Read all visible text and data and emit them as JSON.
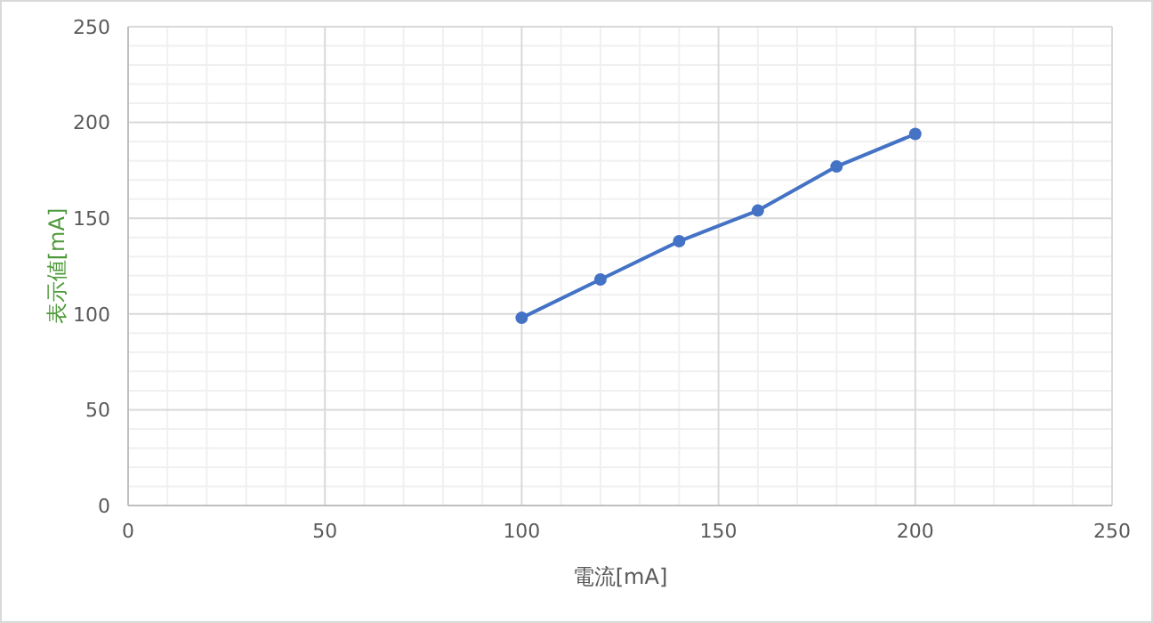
{
  "chart_data": {
    "type": "line",
    "xlabel": "電流[mA]",
    "ylabel": "表示値[mA]",
    "x": [
      100,
      120,
      140,
      160,
      180,
      200
    ],
    "series": [
      {
        "color": "#4472c4",
        "values": [
          98,
          118,
          138,
          154,
          177,
          194
        ]
      }
    ],
    "xlim": [
      0,
      250
    ],
    "xticks": [
      0,
      50,
      100,
      150,
      200,
      250
    ],
    "ylim": [
      0,
      250
    ],
    "yticks": [
      0,
      50,
      100,
      150,
      200,
      250
    ],
    "grid": true,
    "marker": "circle",
    "line_style": "solid"
  }
}
